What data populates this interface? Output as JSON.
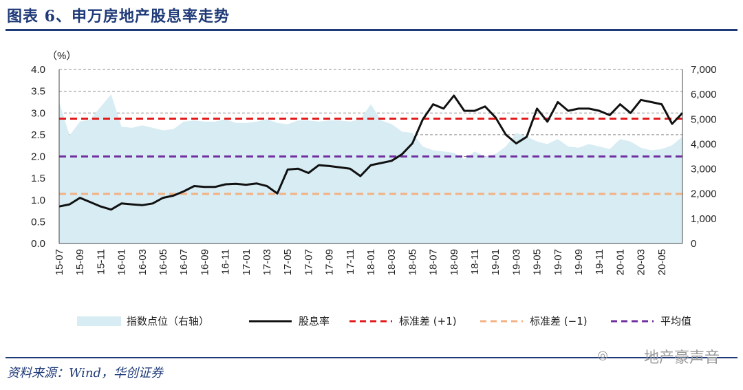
{
  "header": {
    "title": "图表 6、申万房地产股息率走势"
  },
  "footer": {
    "source": "资料来源：Wind，华创证券",
    "watermark": "地产豪声音"
  },
  "chart_data": {
    "type": "line",
    "unit_label": "（%）",
    "left_axis": {
      "ticks": [
        "4.0",
        "3.5",
        "3.0",
        "2.5",
        "2.0",
        "1.5",
        "1.0",
        "0.5",
        "0.0"
      ],
      "range": [
        0,
        4.0
      ]
    },
    "right_axis": {
      "ticks": [
        "7,000",
        "6,000",
        "5,000",
        "4,000",
        "3,000",
        "2,000",
        "1,000",
        "0"
      ],
      "range": [
        0,
        7000
      ]
    },
    "x_labels": [
      "15-07",
      "15-09",
      "15-11",
      "16-01",
      "16-03",
      "16-05",
      "16-07",
      "16-09",
      "16-11",
      "17-01",
      "17-03",
      "17-05",
      "17-07",
      "17-09",
      "17-11",
      "18-01",
      "18-03",
      "18-05",
      "18-07",
      "18-09",
      "18-11",
      "19-01",
      "19-03",
      "19-05",
      "19-07",
      "19-09",
      "19-11",
      "20-01",
      "20-03",
      "20-05"
    ],
    "reference_lines": {
      "std_plus1": 2.87,
      "std_minus1": 1.14,
      "mean": 2.0
    },
    "series": [
      {
        "name": "指数点位（右轴）",
        "axis": "right",
        "style": "area",
        "color": "#d7ecf3",
        "x": [
          "15-07",
          "15-08",
          "15-09",
          "15-10",
          "15-11",
          "15-12",
          "16-01",
          "16-02",
          "16-03",
          "16-04",
          "16-05",
          "16-06",
          "16-07",
          "16-08",
          "16-09",
          "16-10",
          "16-11",
          "16-12",
          "17-01",
          "17-02",
          "17-03",
          "17-04",
          "17-05",
          "17-06",
          "17-07",
          "17-08",
          "17-09",
          "17-10",
          "17-11",
          "17-12",
          "18-01",
          "18-02",
          "18-03",
          "18-04",
          "18-05",
          "18-06",
          "18-07",
          "18-08",
          "18-09",
          "18-10",
          "18-11",
          "18-12",
          "19-01",
          "19-02",
          "19-03",
          "19-04",
          "19-05",
          "19-06",
          "19-07",
          "19-08",
          "19-09",
          "19-10",
          "19-11",
          "19-12",
          "20-01",
          "20-02",
          "20-03",
          "20-04",
          "20-05",
          "20-06",
          "20-07"
        ],
        "values": [
          5700,
          4350,
          4900,
          5000,
          5500,
          6000,
          4700,
          4650,
          4750,
          4650,
          4550,
          4600,
          4900,
          4950,
          4900,
          4900,
          5000,
          4850,
          4850,
          4900,
          5000,
          4850,
          4800,
          4950,
          4950,
          4900,
          4950,
          4950,
          4900,
          5000,
          5600,
          4950,
          4800,
          4500,
          4450,
          3900,
          3750,
          3700,
          3650,
          3400,
          3700,
          3500,
          3600,
          3900,
          4450,
          4300,
          4100,
          4000,
          4200,
          3900,
          3850,
          4000,
          3900,
          3800,
          4200,
          4100,
          3850,
          3750,
          3800,
          3950,
          4300
        ]
      },
      {
        "name": "股息率",
        "axis": "left",
        "style": "line",
        "color": "#111111",
        "x": [
          "15-07",
          "15-08",
          "15-09",
          "15-10",
          "15-11",
          "15-12",
          "16-01",
          "16-02",
          "16-03",
          "16-04",
          "16-05",
          "16-06",
          "16-07",
          "16-08",
          "16-09",
          "16-10",
          "16-11",
          "16-12",
          "17-01",
          "17-02",
          "17-03",
          "17-04",
          "17-05",
          "17-06",
          "17-07",
          "17-08",
          "17-09",
          "17-10",
          "17-11",
          "17-12",
          "18-01",
          "18-02",
          "18-03",
          "18-04",
          "18-05",
          "18-06",
          "18-07",
          "18-08",
          "18-09",
          "18-10",
          "18-11",
          "18-12",
          "19-01",
          "19-02",
          "19-03",
          "19-04",
          "19-05",
          "19-06",
          "19-07",
          "19-08",
          "19-09",
          "19-10",
          "19-11",
          "19-12",
          "20-01",
          "20-02",
          "20-03",
          "20-04",
          "20-05",
          "20-06",
          "20-07"
        ],
        "values": [
          0.85,
          0.9,
          1.05,
          0.95,
          0.85,
          0.78,
          0.92,
          0.9,
          0.88,
          0.92,
          1.05,
          1.1,
          1.2,
          1.32,
          1.3,
          1.3,
          1.36,
          1.37,
          1.35,
          1.38,
          1.32,
          1.15,
          1.7,
          1.72,
          1.62,
          1.8,
          1.78,
          1.75,
          1.72,
          1.55,
          1.8,
          1.85,
          1.9,
          2.05,
          2.3,
          2.85,
          3.2,
          3.1,
          3.4,
          3.05,
          3.05,
          3.15,
          2.9,
          2.5,
          2.3,
          2.45,
          3.1,
          2.8,
          3.25,
          3.05,
          3.1,
          3.1,
          3.05,
          2.95,
          3.2,
          3.0,
          3.3,
          3.25,
          3.2,
          2.75,
          3.0
        ]
      }
    ],
    "legend": [
      "指数点位（右轴）",
      "股息率",
      "标准差 (+1)",
      "标准差 (−1)",
      "平均值"
    ],
    "colors": {
      "std_plus1": "#e31a1c",
      "std_minus1": "#f4b183",
      "mean": "#7030a0",
      "grid": "#8c8c8c"
    }
  }
}
